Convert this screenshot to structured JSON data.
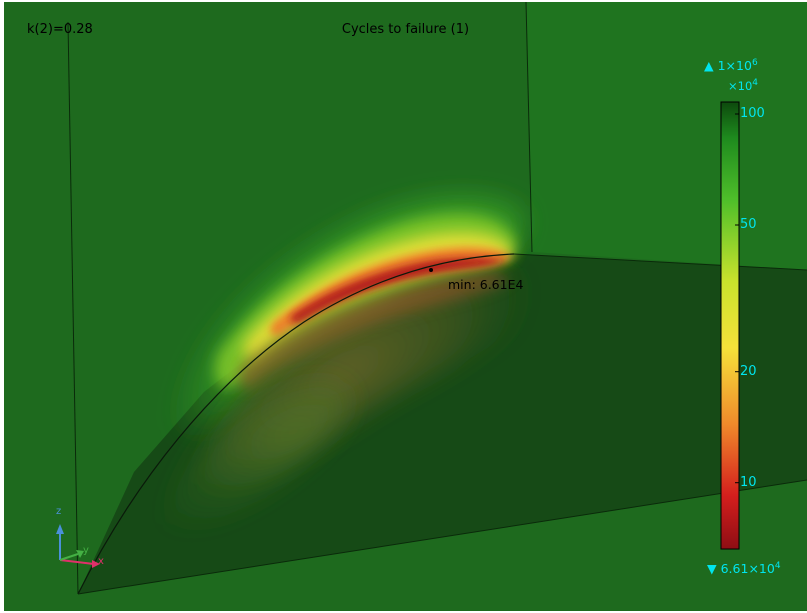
{
  "plot": {
    "parameter_label": "k(2)=0.28",
    "title": "Cycles to failure (1)",
    "min_annotation": "min: 6.61E4"
  },
  "chart_data": {
    "type": "heatmap",
    "title": "Cycles to failure (1)",
    "parameter": "k(2)=0.28",
    "colorbar": {
      "max_marker": {
        "symbol": "▲",
        "base": "1×10",
        "exp": "6"
      },
      "min_marker": {
        "symbol": "▼",
        "base": "6.61×10",
        "exp": "4"
      },
      "scale_multiplier": {
        "base": "×10",
        "exp": "4"
      },
      "scale": "log",
      "range": [
        6.61,
        100
      ],
      "ticks": [
        {
          "value": 100,
          "label": "100"
        },
        {
          "value": 50,
          "label": "50"
        },
        {
          "value": 20,
          "label": "20"
        },
        {
          "value": 10,
          "label": "10"
        }
      ],
      "colormap": [
        "#8e0e14",
        "#e8231d",
        "#f08a2b",
        "#f5e13a",
        "#c9e22c",
        "#4fbf2a",
        "#1e8a1e",
        "#0d4a0d"
      ]
    },
    "min_value": 66100,
    "min_label": "min: 6.61E4"
  },
  "axes_triad": {
    "x": "x",
    "y": "y",
    "z": "z"
  },
  "colors": {
    "background": "#1e6a1e",
    "face_dark": "#124012",
    "label_cyan": "#00e5ee"
  }
}
